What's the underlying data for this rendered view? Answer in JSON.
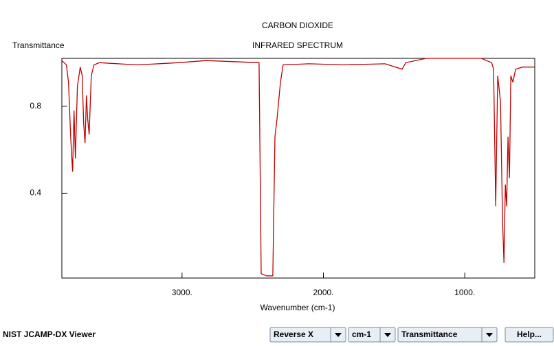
{
  "chart_data": {
    "type": "line",
    "title": "CARBON DIOXIDE",
    "subtitle": "INFRARED SPECTRUM",
    "y_label": "Transmittance",
    "x_label": "Wavenumber (cm-1)",
    "x": [
      3850,
      3818,
      3803,
      3788,
      3774,
      3764,
      3754,
      3740,
      3720,
      3706,
      3696,
      3686,
      3676,
      3667,
      3657,
      3642,
      3623,
      3584,
      3316,
      3024,
      2830,
      2455,
      2440,
      2401,
      2358,
      2343,
      2328,
      2304,
      2285,
      2100,
      1856,
      1564,
      1443,
      1418,
      1273,
      883,
      810,
      796,
      781,
      767,
      747,
      733,
      723,
      713,
      704,
      694,
      684,
      674,
      660,
      640,
      591,
      505
    ],
    "series": [
      {
        "color": "#c00000",
        "values": [
          1.01,
          0.99,
          0.91,
          0.66,
          0.5,
          0.78,
          0.56,
          0.89,
          0.98,
          0.94,
          0.72,
          0.63,
          0.85,
          0.74,
          0.67,
          0.94,
          0.99,
          1.0,
          0.99,
          1.0,
          1.01,
          1.0,
          0.03,
          0.02,
          0.02,
          0.66,
          0.74,
          0.91,
          0.99,
          0.995,
          0.99,
          0.995,
          0.97,
          1.0,
          1.02,
          1.02,
          1.0,
          0.97,
          0.34,
          0.94,
          0.82,
          0.28,
          0.08,
          0.44,
          0.34,
          0.66,
          0.47,
          0.94,
          0.91,
          0.97,
          0.98,
          0.98
        ]
      }
    ],
    "xlim": [
      3850,
      505
    ],
    "ylim": [
      0.01,
      1.02
    ],
    "xticks": [
      {
        "value": 3000,
        "label": "3000."
      },
      {
        "value": 2000,
        "label": "2000."
      },
      {
        "value": 1000,
        "label": "1000."
      }
    ],
    "yticks": [
      0.4,
      0.8
    ]
  },
  "viewer": {
    "name": "NIST JCAMP-DX Viewer",
    "controls": [
      "Reverse X",
      "cm-1",
      "Transmittance",
      "Help..."
    ]
  }
}
